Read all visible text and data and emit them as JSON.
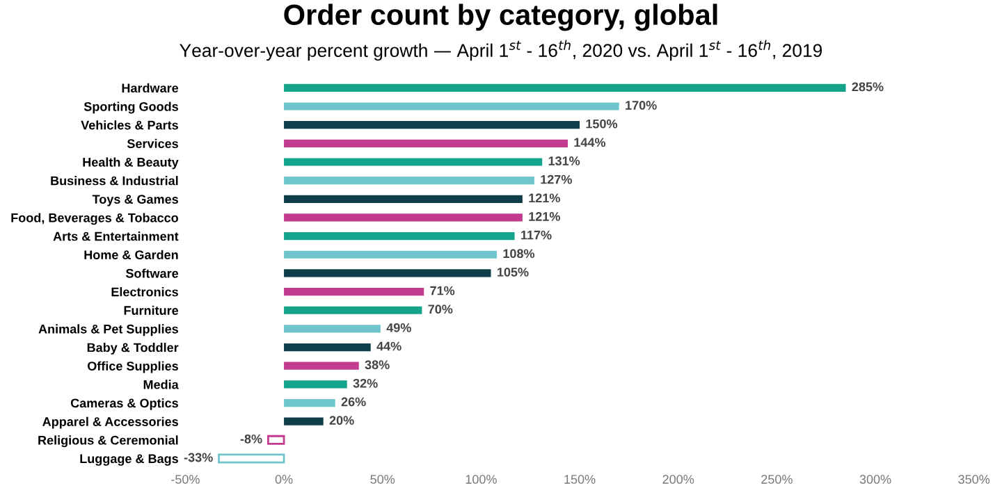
{
  "chart_data": {
    "type": "bar",
    "orientation": "horizontal",
    "title": "Order count by category, global",
    "subtitle": "Year-over-year percent growth — April 1$^{st}$ - 16$^{th}$, 2020 vs. April 1$^{st}$ - 16$^{th}$, 2019",
    "categories": [
      "Hardware",
      "Sporting Goods",
      "Vehicles & Parts",
      "Services",
      "Health & Beauty",
      "Business & Industrial",
      "Toys & Games",
      "Food, Beverages & Tobacco",
      "Arts & Entertainment",
      "Home & Garden",
      "Software",
      "Electronics",
      "Furniture",
      "Animals & Pet Supplies",
      "Baby & Toddler",
      "Office Supplies",
      "Media",
      "Cameras & Optics",
      "Apparel & Accessories",
      "Religious & Ceremonial",
      "Luggage & Bags"
    ],
    "values": [
      285,
      170,
      150,
      144,
      131,
      127,
      121,
      121,
      117,
      108,
      105,
      71,
      70,
      49,
      44,
      38,
      32,
      26,
      20,
      -8,
      -33
    ],
    "value_labels": [
      "285%",
      "170%",
      "150%",
      "144%",
      "131%",
      "127%",
      "121%",
      "121%",
      "117%",
      "108%",
      "105%",
      "71%",
      "70%",
      "49%",
      "44%",
      "38%",
      "32%",
      "26%",
      "20%",
      "-8%",
      "-33%"
    ],
    "colors": [
      "#14a38b",
      "#6ec6cc",
      "#0f3d4a",
      "#c23b8e",
      "#14a38b",
      "#6ec6cc",
      "#0f3d4a",
      "#c23b8e",
      "#14a38b",
      "#6ec6cc",
      "#0f3d4a",
      "#c23b8e",
      "#14a38b",
      "#6ec6cc",
      "#0f3d4a",
      "#c23b8e",
      "#14a38b",
      "#6ec6cc",
      "#0f3d4a",
      "#c23b8e",
      "#6ec6cc"
    ],
    "xlim": [
      -50,
      350
    ],
    "xticks": [
      {
        "value": -50,
        "label": "-50%"
      },
      {
        "value": 0,
        "label": "0%"
      },
      {
        "value": 50,
        "label": "50%"
      },
      {
        "value": 100,
        "label": "100%"
      },
      {
        "value": 150,
        "label": "150%"
      },
      {
        "value": 200,
        "label": "200%"
      },
      {
        "value": 250,
        "label": "250%"
      },
      {
        "value": 300,
        "label": "300%"
      },
      {
        "value": 350,
        "label": "350%"
      }
    ],
    "grid": false,
    "legend": false
  }
}
